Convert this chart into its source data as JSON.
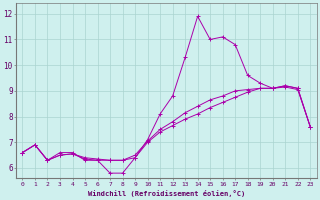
{
  "xlabel": "Windchill (Refroidissement éolien,°C)",
  "bg_color": "#cff0ee",
  "grid_color": "#aad4d0",
  "line_color": "#aa00aa",
  "xlim": [
    -0.5,
    23.5
  ],
  "ylim": [
    5.6,
    12.4
  ],
  "yticks": [
    6,
    7,
    8,
    9,
    10,
    11,
    12
  ],
  "xticks": [
    0,
    1,
    2,
    3,
    4,
    5,
    6,
    7,
    8,
    9,
    10,
    11,
    12,
    13,
    14,
    15,
    16,
    17,
    18,
    19,
    20,
    21,
    22,
    23
  ],
  "lines": [
    {
      "x": [
        0,
        1,
        2,
        3,
        4,
        5,
        6,
        7,
        8,
        9,
        10,
        11,
        12,
        13,
        14,
        15,
        16,
        17,
        18,
        19,
        20,
        21,
        22,
        23
      ],
      "y": [
        6.6,
        6.9,
        6.3,
        6.6,
        6.6,
        6.3,
        6.3,
        5.8,
        5.8,
        6.4,
        7.1,
        8.1,
        8.8,
        10.3,
        11.9,
        11.0,
        11.1,
        10.8,
        9.6,
        9.3,
        9.1,
        9.2,
        9.1,
        7.6
      ]
    },
    {
      "x": [
        0,
        1,
        2,
        3,
        4,
        5,
        6,
        7,
        8,
        9,
        10,
        11,
        12,
        13,
        14,
        15,
        16,
        17,
        18,
        19,
        20,
        21,
        22,
        23
      ],
      "y": [
        6.6,
        6.9,
        6.3,
        6.5,
        6.55,
        6.4,
        6.35,
        6.3,
        6.3,
        6.5,
        7.05,
        7.5,
        7.8,
        8.15,
        8.4,
        8.65,
        8.8,
        9.0,
        9.05,
        9.1,
        9.1,
        9.2,
        9.1,
        7.6
      ]
    },
    {
      "x": [
        0,
        1,
        2,
        3,
        4,
        5,
        6,
        7,
        8,
        9,
        10,
        11,
        12,
        13,
        14,
        15,
        16,
        17,
        18,
        19,
        20,
        21,
        22,
        23
      ],
      "y": [
        6.6,
        6.9,
        6.3,
        6.5,
        6.55,
        6.35,
        6.3,
        6.3,
        6.3,
        6.4,
        7.0,
        7.4,
        7.65,
        7.9,
        8.1,
        8.35,
        8.55,
        8.75,
        8.95,
        9.1,
        9.1,
        9.15,
        9.05,
        7.6
      ]
    }
  ]
}
